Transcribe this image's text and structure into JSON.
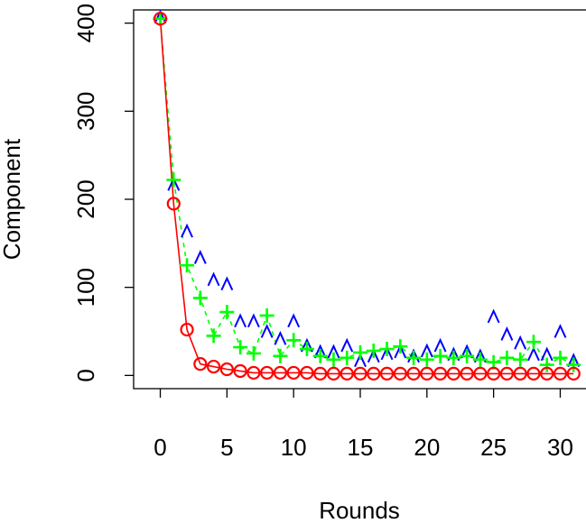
{
  "chart_data": {
    "type": "scatter",
    "title": "",
    "xlabel": "Rounds",
    "ylabel": "Component",
    "xlim": [
      -2,
      32
    ],
    "ylim": [
      -15,
      415
    ],
    "x_ticks": [
      0,
      5,
      10,
      15,
      20,
      25,
      30
    ],
    "y_ticks": [
      0,
      100,
      200,
      300,
      400
    ],
    "grid": false,
    "legend": "none",
    "x": [
      0,
      1,
      2,
      3,
      4,
      5,
      6,
      7,
      8,
      9,
      10,
      11,
      12,
      13,
      14,
      15,
      16,
      17,
      18,
      19,
      20,
      21,
      22,
      23,
      24,
      25,
      26,
      27,
      28,
      29,
      30,
      31
    ],
    "series": [
      {
        "marker": "^",
        "color": "#0000ff",
        "line": "",
        "values": [
          405,
          215,
          162,
          132,
          107,
          102,
          60,
          60,
          48,
          40,
          60,
          32,
          25,
          25,
          32,
          15,
          20,
          23,
          25,
          20,
          26,
          32,
          22,
          25,
          20,
          65,
          45,
          35,
          22,
          22,
          48,
          15
        ]
      },
      {
        "marker": "+",
        "color": "#00ff00",
        "line": "dashed",
        "values": [
          405,
          222,
          125,
          88,
          45,
          72,
          32,
          25,
          68,
          22,
          40,
          30,
          22,
          18,
          20,
          26,
          28,
          30,
          33,
          20,
          18,
          22,
          20,
          22,
          18,
          15,
          20,
          18,
          38,
          12,
          20,
          12
        ]
      },
      {
        "marker": "o",
        "color": "#ff0000",
        "line": "solid",
        "values": [
          405,
          195,
          52,
          13,
          10,
          7,
          5,
          3,
          3,
          3,
          3,
          3,
          2,
          2,
          2,
          2,
          2,
          2,
          2,
          2,
          2,
          2,
          2,
          2,
          2,
          2,
          2,
          2,
          2,
          2,
          2,
          2
        ]
      }
    ]
  }
}
